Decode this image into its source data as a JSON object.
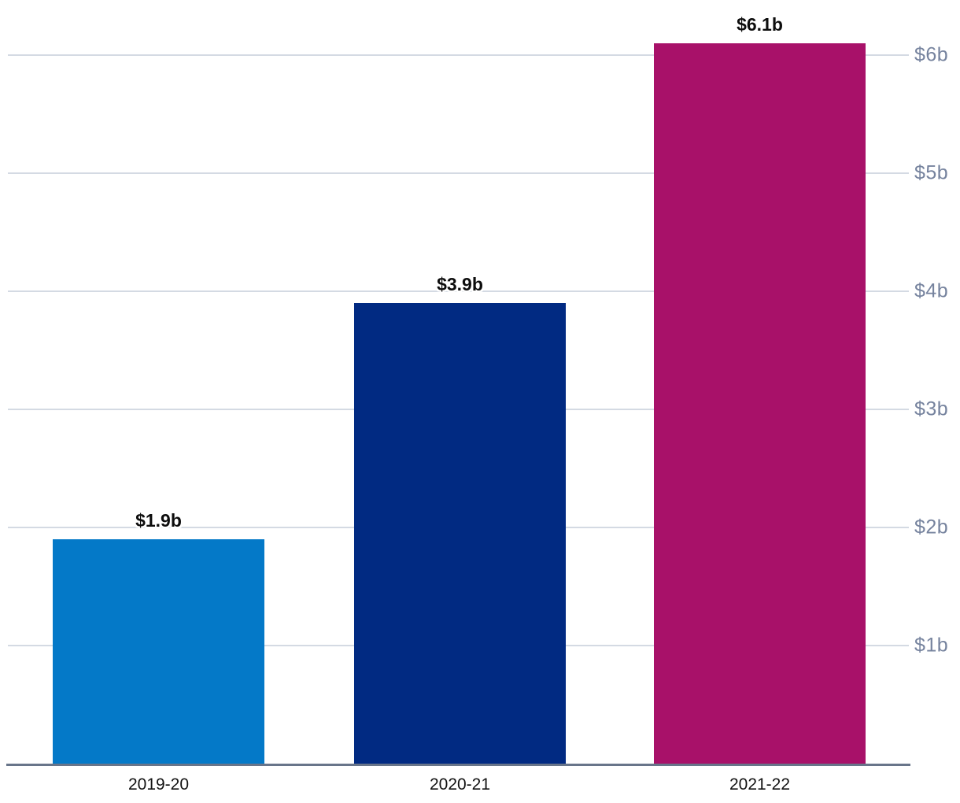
{
  "chart_data": {
    "type": "bar",
    "title": "",
    "xlabel": "",
    "ylabel": "",
    "categories": [
      "2019-20",
      "2020-21",
      "2021-22"
    ],
    "values": [
      1.9,
      3.9,
      6.1
    ],
    "value_labels": [
      "$1.9b",
      "$3.9b",
      "$6.1b"
    ],
    "series": [
      {
        "name": "Amount",
        "values": [
          1.9,
          3.9,
          6.1
        ]
      }
    ],
    "bar_colors": [
      "#0479c8",
      "#012a82",
      "#a81169"
    ],
    "y_ticks": [
      "$1b",
      "$2b",
      "$3b",
      "$4b",
      "$5b",
      "$6b"
    ],
    "y_tick_values": [
      1,
      2,
      3,
      4,
      5,
      6
    ],
    "ylim": [
      0,
      6.46
    ],
    "grid": "horizontal",
    "legend": "none",
    "colors": {
      "gridline": "#d4dae3",
      "axis_line": "#68758a",
      "y_tick_label": "#76839e",
      "value_label": "#0d0d0d",
      "x_tick_label": "#121212",
      "background": "#ffffff"
    }
  }
}
